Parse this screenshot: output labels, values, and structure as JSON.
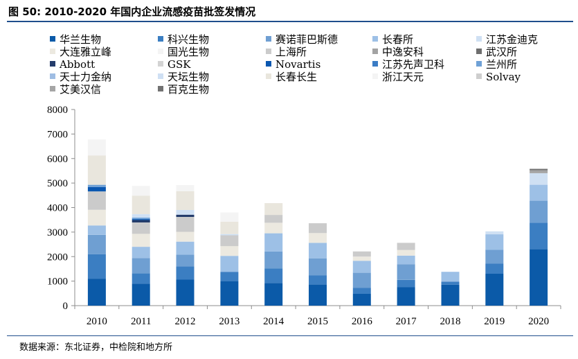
{
  "figure": {
    "title": "图 50: 2010-2020 年国内企业流感疫苗批签发情况",
    "source": "数据来源：东北证券，中检院和地方所"
  },
  "chart_data": {
    "type": "bar",
    "stacked": true,
    "title": "",
    "xlabel": "",
    "ylabel": "",
    "ylim": [
      0,
      8000
    ],
    "yticks": [
      0,
      1000,
      2000,
      3000,
      4000,
      5000,
      6000,
      7000,
      8000
    ],
    "grid": false,
    "legend_position": "top",
    "categories": [
      "2010",
      "2011",
      "2012",
      "2013",
      "2014",
      "2015",
      "2016",
      "2017",
      "2018",
      "2019",
      "2020"
    ],
    "series": [
      {
        "name": "华兰生物",
        "color": "#0b5aa8",
        "values": [
          1100,
          900,
          1060,
          1000,
          920,
          860,
          480,
          750,
          850,
          1300,
          2300
        ]
      },
      {
        "name": "科兴生物",
        "color": "#3b7ec2",
        "values": [
          1000,
          420,
          540,
          380,
          600,
          370,
          240,
          300,
          130,
          410,
          1080
        ]
      },
      {
        "name": "赛诺菲巴斯德",
        "color": "#6f9fd2",
        "values": [
          790,
          620,
          480,
          0,
          690,
          700,
          620,
          640,
          0,
          570,
          900
        ]
      },
      {
        "name": "长春所",
        "color": "#9dc0e6",
        "values": [
          380,
          460,
          530,
          650,
          740,
          630,
          490,
          350,
          400,
          630,
          650
        ]
      },
      {
        "name": "江苏金迪克",
        "color": "#cfe0f3",
        "values": [
          0,
          0,
          0,
          0,
          0,
          0,
          0,
          0,
          0,
          120,
          470
        ]
      },
      {
        "name": "大连雅立峰",
        "color": "#ece9e0",
        "values": [
          640,
          530,
          400,
          400,
          430,
          400,
          170,
          230,
          0,
          0,
          0
        ]
      },
      {
        "name": "国光生物",
        "color": "#f4f4f4",
        "values": [
          0,
          0,
          0,
          0,
          0,
          0,
          0,
          0,
          0,
          0,
          0
        ]
      },
      {
        "name": "上海所",
        "color": "#cbcbcb",
        "values": [
          750,
          460,
          610,
          440,
          320,
          400,
          210,
          290,
          0,
          0,
          0
        ]
      },
      {
        "name": "中逸安科",
        "color": "#a3a3a3",
        "values": [
          0,
          0,
          0,
          0,
          0,
          0,
          0,
          0,
          0,
          0,
          0
        ]
      },
      {
        "name": "武汉所",
        "color": "#6e6e6e",
        "values": [
          0,
          0,
          0,
          0,
          0,
          0,
          0,
          0,
          0,
          0,
          0
        ]
      },
      {
        "name": "Abbott",
        "color": "#243c6b",
        "values": [
          0,
          100,
          90,
          0,
          0,
          0,
          0,
          0,
          0,
          0,
          0
        ]
      },
      {
        "name": "GSK",
        "color": "#d3d3d3",
        "values": [
          0,
          0,
          0,
          0,
          0,
          0,
          0,
          0,
          0,
          0,
          0
        ]
      },
      {
        "name": "Novartis",
        "color": "#0a57b0",
        "values": [
          180,
          40,
          0,
          0,
          0,
          0,
          0,
          0,
          0,
          0,
          0
        ]
      },
      {
        "name": "江苏先声卫科",
        "color": "#3a7cc5",
        "values": [
          0,
          0,
          0,
          0,
          0,
          0,
          0,
          0,
          0,
          0,
          0
        ]
      },
      {
        "name": "兰州所",
        "color": "#6fa1d6",
        "values": [
          90,
          60,
          0,
          0,
          0,
          0,
          0,
          0,
          0,
          0,
          0
        ]
      },
      {
        "name": "天士力金纳",
        "color": "#9fbde3",
        "values": [
          0,
          0,
          0,
          0,
          0,
          0,
          0,
          0,
          0,
          0,
          0
        ]
      },
      {
        "name": "天坛生物",
        "color": "#cfe0f4",
        "values": [
          0,
          140,
          190,
          50,
          0,
          0,
          0,
          0,
          0,
          0,
          0
        ]
      },
      {
        "name": "长春长生",
        "color": "#e9e6dd",
        "values": [
          1200,
          750,
          770,
          500,
          480,
          0,
          0,
          0,
          0,
          0,
          0
        ]
      },
      {
        "name": "浙江天元",
        "color": "#f4f4f4",
        "values": [
          650,
          400,
          250,
          380,
          0,
          0,
          0,
          0,
          0,
          0,
          0
        ]
      },
      {
        "name": "Solvay",
        "color": "#cecece",
        "values": [
          0,
          0,
          0,
          0,
          0,
          0,
          0,
          0,
          0,
          0,
          0
        ]
      },
      {
        "name": "艾美汉信",
        "color": "#a5a5a5",
        "values": [
          0,
          0,
          0,
          0,
          0,
          0,
          0,
          0,
          0,
          0,
          120
        ]
      },
      {
        "name": "百克生物",
        "color": "#727272",
        "values": [
          0,
          0,
          0,
          0,
          0,
          0,
          0,
          0,
          0,
          0,
          60
        ]
      }
    ]
  }
}
